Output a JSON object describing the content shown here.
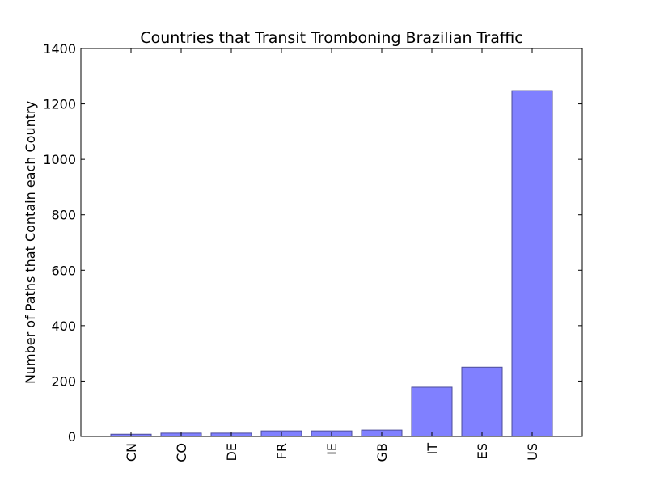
{
  "chart_data": {
    "type": "bar",
    "title": "Countries that Transit Tromboning Brazilian Traffic",
    "xlabel": "",
    "ylabel": "Number of Paths that Contain each Country",
    "categories": [
      "CN",
      "CO",
      "DE",
      "FR",
      "IE",
      "GB",
      "IT",
      "ES",
      "US"
    ],
    "values": [
      8,
      12,
      12,
      20,
      20,
      23,
      178,
      250,
      1248
    ],
    "ylim": [
      0,
      1400
    ],
    "yticks": [
      0,
      200,
      400,
      600,
      800,
      1000,
      1200,
      1400
    ],
    "bar_color": "#8080ff",
    "bar_edge_color": "#4d4d99",
    "grid": false
  }
}
